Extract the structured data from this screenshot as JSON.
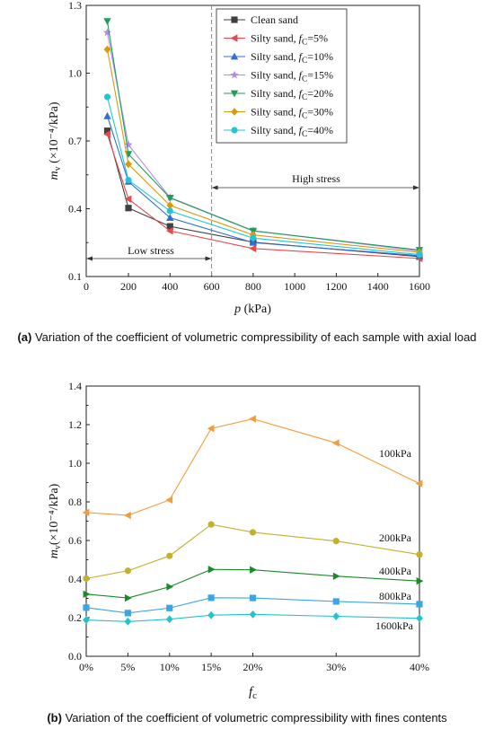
{
  "chart_data": [
    {
      "type": "line",
      "panel_label": "(a)",
      "caption": "Variation of the coefficient of volumetric compressibility of each sample with axial load",
      "xlabel": "p (kPa)",
      "ylabel": "mv (×10⁻⁴/kPa)",
      "x_scale": "irregular",
      "x": [
        100,
        200,
        400,
        800,
        1600
      ],
      "x_ticks": [
        "0",
        "200",
        "400",
        "600",
        "800",
        "1000",
        "1200",
        "1400",
        "1600"
      ],
      "y_ticks": [
        "0.1",
        "0.4",
        "0.7",
        "1.0",
        "1.3"
      ],
      "ylim": [
        0.1,
        1.3
      ],
      "legend_position": "top-right",
      "annotations": [
        {
          "text": "Low stress",
          "from": 0,
          "to": 600
        },
        {
          "text": "High stress",
          "from": 600,
          "to": 1600
        }
      ],
      "divider_x": 600,
      "series": [
        {
          "name": "Clean sand",
          "marker": "square",
          "color": "#404040",
          "values": [
            0.745,
            0.403,
            0.322,
            0.252,
            0.188
          ]
        },
        {
          "name": "Silty sand, fc=5%",
          "marker": "triangle-left",
          "color": "#e8494b",
          "values": [
            0.73,
            0.443,
            0.302,
            0.224,
            0.18
          ]
        },
        {
          "name": "Silty sand, fc=10%",
          "marker": "triangle-up",
          "color": "#2f6ed6",
          "values": [
            0.81,
            0.52,
            0.36,
            0.25,
            0.192
          ]
        },
        {
          "name": "Silty sand, fc=15%",
          "marker": "star",
          "color": "#b28ce8",
          "values": [
            1.18,
            0.683,
            0.45,
            0.303,
            0.213
          ]
        },
        {
          "name": "Silty sand, fc=20%",
          "marker": "triangle-down",
          "color": "#1f9e5a",
          "values": [
            1.23,
            0.642,
            0.448,
            0.302,
            0.217
          ]
        },
        {
          "name": "Silty sand, fc=30%",
          "marker": "diamond",
          "color": "#d79b12",
          "values": [
            1.105,
            0.597,
            0.415,
            0.284,
            0.207
          ]
        },
        {
          "name": "Silty sand, fc=40%",
          "marker": "circle",
          "color": "#25c4d4",
          "values": [
            0.895,
            0.527,
            0.39,
            0.27,
            0.197
          ]
        }
      ]
    },
    {
      "type": "line",
      "panel_label": "(b)",
      "caption": "Variation of the coefficient of volumetric compressibility with fines contents",
      "xlabel": "fc",
      "ylabel": "mv(×10⁻⁴/kPa)",
      "categories": [
        "0%",
        "5%",
        "10%",
        "15%",
        "20%",
        "30%",
        "40%"
      ],
      "x_values": [
        0,
        5,
        10,
        15,
        20,
        30,
        40
      ],
      "y_ticks": [
        "0.0",
        "0.2",
        "0.4",
        "0.6",
        "0.8",
        "1.0",
        "1.2",
        "1.4"
      ],
      "ylim": [
        0,
        1.4
      ],
      "series": [
        {
          "name": "100kPa",
          "marker": "triangle-left",
          "color": "#f39c3c",
          "values": [
            0.745,
            0.73,
            0.81,
            1.18,
            1.23,
            1.105,
            0.895
          ]
        },
        {
          "name": "200kPa",
          "marker": "circle",
          "color": "#c5b02a",
          "values": [
            0.403,
            0.443,
            0.52,
            0.683,
            0.642,
            0.597,
            0.527
          ]
        },
        {
          "name": "400kPa",
          "marker": "triangle-right",
          "color": "#1a8a2a",
          "values": [
            0.322,
            0.302,
            0.36,
            0.45,
            0.448,
            0.415,
            0.39
          ]
        },
        {
          "name": "800kPa",
          "marker": "square",
          "color": "#3aa6e6",
          "values": [
            0.252,
            0.224,
            0.25,
            0.303,
            0.302,
            0.284,
            0.27
          ]
        },
        {
          "name": "1600kPa",
          "marker": "diamond",
          "color": "#22c4cc",
          "values": [
            0.188,
            0.18,
            0.192,
            0.213,
            0.217,
            0.207,
            0.197
          ]
        }
      ]
    }
  ]
}
